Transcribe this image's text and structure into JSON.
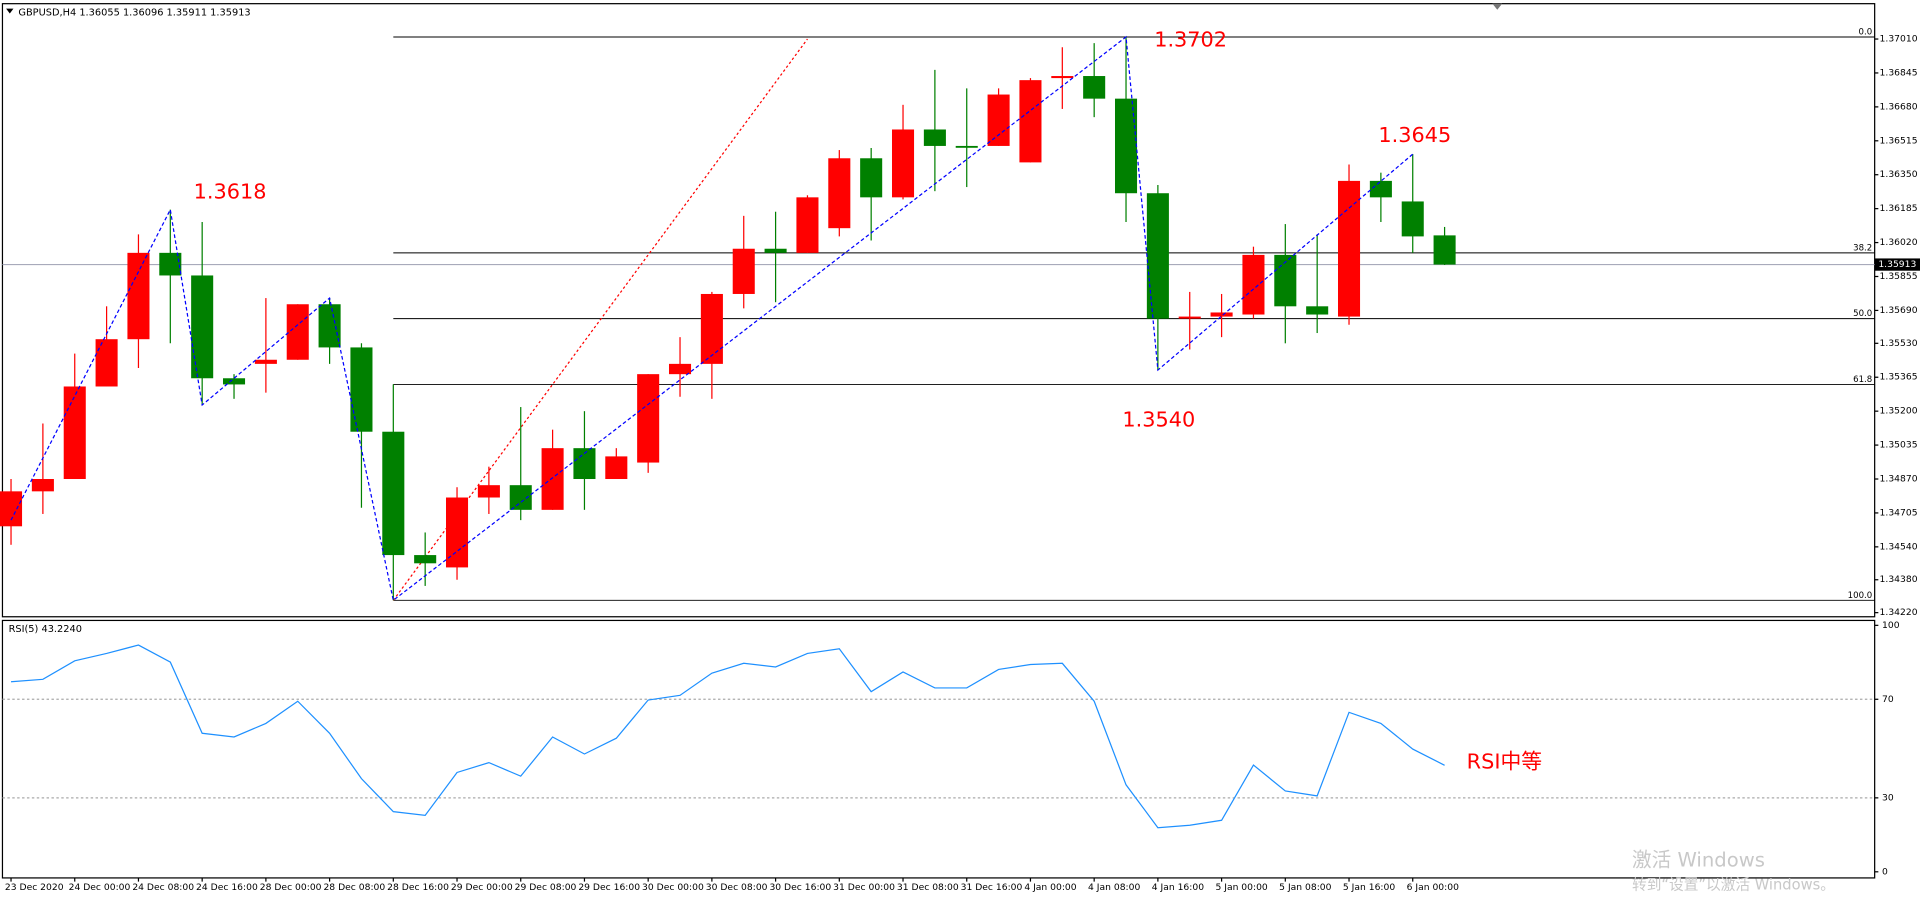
{
  "watermark": {
    "title": "激活 Windows",
    "subtitle": "转到“设置”以激活 Windows。"
  },
  "chart_data": [
    {
      "type": "candlestick",
      "title": "GBPUSD,H4  1.36055 1.36096 1.35911 1.35913",
      "categories": [
        "23 Dec 2020",
        null,
        "24 Dec 00:00",
        null,
        "24 Dec 08:00",
        null,
        "24 Dec 16:00",
        null,
        "28 Dec 00:00",
        null,
        "28 Dec 08:00",
        null,
        "28 Dec 16:00",
        null,
        "29 Dec 00:00",
        null,
        "29 Dec 08:00",
        null,
        "29 Dec 16:00",
        null,
        "30 Dec 00:00",
        null,
        "30 Dec 08:00",
        null,
        "30 Dec 16:00",
        null,
        "31 Dec 00:00",
        null,
        "31 Dec 08:00",
        null,
        "31 Dec 16:00",
        null,
        "4 Jan 00:00",
        null,
        "4 Jan 08:00",
        null,
        "4 Jan 16:00",
        null,
        "5 Jan 00:00",
        null,
        "5 Jan 08:00",
        null,
        "5 Jan 16:00",
        null,
        "6 Jan 00:00",
        null
      ],
      "open": [
        1.3464,
        1.3481,
        1.3487,
        1.3532,
        1.3555,
        1.3597,
        1.3586,
        1.3536,
        1.3543,
        1.3545,
        1.3572,
        1.3551,
        1.351,
        1.345,
        1.3444,
        1.3478,
        1.3484,
        1.3472,
        1.3502,
        1.3487,
        1.3495,
        1.3538,
        1.3543,
        1.3577,
        1.3599,
        1.3597,
        1.3609,
        1.3643,
        1.3624,
        1.3657,
        1.3649,
        1.3649,
        1.3641,
        1.3682,
        1.3683,
        1.3672,
        1.3626,
        1.3565,
        1.3566,
        1.3567,
        1.3596,
        1.3571,
        1.3566,
        1.3632,
        1.3622,
        1.36055
      ],
      "high": [
        1.3487,
        1.3514,
        1.3548,
        1.3571,
        1.3606,
        1.3618,
        1.3612,
        1.3538,
        1.3575,
        1.3572,
        1.3575,
        1.3553,
        1.3533,
        1.3461,
        1.3483,
        1.3493,
        1.3522,
        1.3511,
        1.352,
        1.3502,
        1.3538,
        1.3556,
        1.3578,
        1.3615,
        1.3617,
        1.3625,
        1.3647,
        1.3648,
        1.3669,
        1.3686,
        1.3677,
        1.3677,
        1.3682,
        1.3697,
        1.3699,
        1.3702,
        1.363,
        1.3578,
        1.3577,
        1.36,
        1.3611,
        1.3606,
        1.364,
        1.3636,
        1.3645,
        1.36096
      ],
      "low": [
        1.3455,
        1.347,
        1.3487,
        1.3532,
        1.3541,
        1.3553,
        1.3523,
        1.3526,
        1.3529,
        1.3545,
        1.3543,
        1.3473,
        1.3428,
        1.3435,
        1.3438,
        1.347,
        1.3467,
        1.3472,
        1.3472,
        1.3487,
        1.349,
        1.3527,
        1.3526,
        1.357,
        1.3573,
        1.3597,
        1.3605,
        1.3603,
        1.3623,
        1.3627,
        1.3629,
        1.3649,
        1.3641,
        1.3667,
        1.3663,
        1.3612,
        1.354,
        1.355,
        1.3556,
        1.3565,
        1.3553,
        1.3558,
        1.3562,
        1.3612,
        1.3597,
        1.35911
      ],
      "close": [
        1.3481,
        1.3487,
        1.3532,
        1.3555,
        1.3597,
        1.3586,
        1.3536,
        1.3533,
        1.3545,
        1.3572,
        1.3551,
        1.351,
        1.345,
        1.3446,
        1.3478,
        1.3484,
        1.3472,
        1.3502,
        1.3487,
        1.3498,
        1.3538,
        1.3543,
        1.3577,
        1.3599,
        1.3597,
        1.3624,
        1.3643,
        1.3624,
        1.3657,
        1.3649,
        1.3649,
        1.3674,
        1.3681,
        1.3683,
        1.3672,
        1.3626,
        1.3565,
        1.3566,
        1.3568,
        1.3596,
        1.3571,
        1.3567,
        1.3632,
        1.3624,
        1.3605,
        1.35913
      ],
      "up_color": "#ff0000",
      "down_color": "#008000",
      "ylim": [
        1.342,
        1.3717
      ],
      "yticks": [
        {
          "value": 1.3701,
          "label": "1.37010"
        },
        1.36845,
        {
          "value": 1.3668,
          "label": "1.36680"
        },
        1.36515,
        {
          "value": 1.3635,
          "label": "1.36350"
        },
        1.36185,
        {
          "value": 1.3602,
          "label": "1.36020"
        },
        1.35855,
        {
          "value": 1.3569,
          "label": "1.35690"
        },
        {
          "value": 1.3553,
          "label": "1.35530"
        },
        1.35365,
        {
          "value": 1.352,
          "label": "1.35200"
        },
        1.35035,
        {
          "value": 1.3487,
          "label": "1.34870"
        },
        1.34705,
        {
          "value": 1.3454,
          "label": "1.34540"
        },
        {
          "value": 1.3438,
          "label": "1.34380"
        },
        {
          "value": 1.3422,
          "label": "1.34220"
        }
      ],
      "fib_levels": [
        {
          "label": "0.0",
          "value": 1.3702
        },
        {
          "label": "38.2",
          "value": 1.3597
        },
        {
          "label": "50.0",
          "value": 1.3565
        },
        {
          "label": "61.8",
          "value": 1.3533
        },
        {
          "label": "100.0",
          "value": 1.3428
        }
      ],
      "zigzag": {
        "color": "#0000ff",
        "indices": [
          0,
          5,
          6,
          10,
          12,
          35,
          36,
          44
        ],
        "values": [
          1.3467,
          1.3618,
          1.3523,
          1.3575,
          1.3428,
          1.3702,
          1.354,
          1.3645
        ]
      },
      "trend_line": {
        "color": "#ff0000",
        "indices": [
          12,
          25
        ],
        "values": [
          1.3428,
          1.3701
        ]
      },
      "annotations": [
        "1.3618",
        "1.3702",
        "1.3645",
        "1.3540"
      ],
      "annotation_color": "#ff0000"
    },
    {
      "type": "line",
      "title": "RSI(5) 43.2240",
      "values": [
        77.1,
        78.1,
        85.6,
        88.6,
        92.0,
        85.1,
        56.2,
        54.7,
        60.2,
        69.2,
        56.2,
        37.8,
        24.4,
        22.9,
        40.3,
        44.3,
        38.8,
        54.7,
        47.8,
        54.2,
        69.7,
        71.6,
        80.6,
        84.6,
        83.1,
        88.6,
        90.5,
        73.1,
        81.1,
        74.6,
        74.6,
        82.1,
        84.1,
        84.6,
        69.2,
        35.3,
        17.9,
        18.9,
        20.9,
        43.3,
        32.8,
        30.8,
        64.7,
        60.2,
        49.8,
        43.224
      ],
      "color": "#1e90ff",
      "ylim": [
        0,
        100
      ],
      "yticks": [
        0,
        30,
        70,
        100
      ],
      "levels": [
        30,
        70
      ],
      "annotation": "RSI中等",
      "annotation_color": "#ff0000"
    }
  ]
}
